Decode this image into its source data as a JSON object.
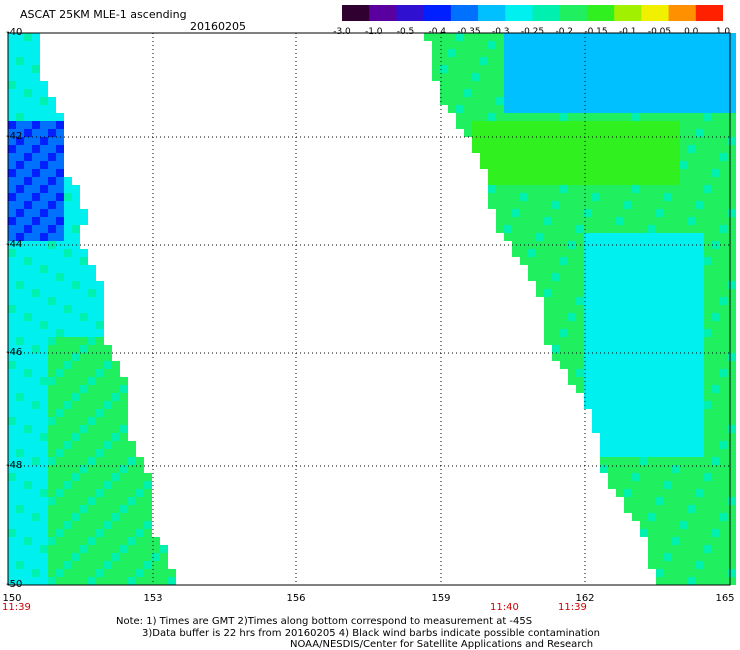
{
  "header": {
    "title": "ASCAT 25KM MLE-1 ascending",
    "date": "20160205"
  },
  "colorbar": {
    "ticks": [
      "-3.0",
      "-1.0",
      "-0.5",
      "-0.4",
      "-0.35",
      "-0.3",
      "-0.25",
      "-0.2",
      "-0.15",
      "-0.1",
      "-0.05",
      "0.0",
      "1.0"
    ],
    "colors": [
      "#300030",
      "#5a00a0",
      "#3010d0",
      "#0020ff",
      "#0070ff",
      "#00c0ff",
      "#00f0f0",
      "#00f0b0",
      "#20f060",
      "#30f020",
      "#a0f000",
      "#f0f000",
      "#ff9000",
      "#ff2000"
    ]
  },
  "map": {
    "lat_labels": [
      "-40",
      "-42",
      "-44",
      "-46",
      "-48",
      "-50"
    ],
    "lon_labels": [
      "150",
      "153",
      "156",
      "159",
      "162",
      "165"
    ],
    "time_labels": [
      "11:39",
      "11:40",
      "11:39"
    ]
  },
  "footer": {
    "line1": "Note: 1) Times are GMT 2)Times along bottom correspond to measurement at -45S",
    "line2": "3)Data buffer is 22 hrs from 20160205 4) Black wind barbs indicate possible contamination",
    "line3": "NOAA/NESDIS/Center for Satellite Applications and Research"
  }
}
